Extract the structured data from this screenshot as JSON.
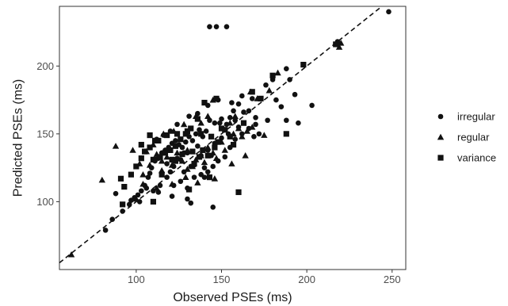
{
  "chart_data": {
    "type": "scatter",
    "title": "",
    "xlabel": "Observed PSEs (ms)",
    "ylabel": "Predicted PSEs (ms)",
    "xlim": [
      55,
      258
    ],
    "ylim": [
      50,
      244
    ],
    "x_ticks": [
      100,
      150,
      200,
      250
    ],
    "y_ticks": [
      100,
      150,
      200
    ],
    "grid": false,
    "legend_position": "right",
    "reference_line": {
      "style": "dashed",
      "slope": 1,
      "intercept": 0
    },
    "series": [
      {
        "name": "irregular",
        "marker": "circle",
        "points": [
          [
            248,
            240
          ],
          [
            218,
            218
          ],
          [
            188,
            198
          ],
          [
            180,
            190
          ],
          [
            176,
            186
          ],
          [
            190,
            190
          ],
          [
            193,
            179
          ],
          [
            203,
            171
          ],
          [
            195,
            158
          ],
          [
            188,
            160
          ],
          [
            185,
            170
          ],
          [
            182,
            175
          ],
          [
            166,
            167
          ],
          [
            170,
            162
          ],
          [
            163,
            166
          ],
          [
            160,
            172
          ],
          [
            157,
            167
          ],
          [
            160,
            155
          ],
          [
            158,
            160
          ],
          [
            155,
            162
          ],
          [
            153,
            157
          ],
          [
            150,
            161
          ],
          [
            149,
            158
          ],
          [
            146,
            158
          ],
          [
            143,
            160
          ],
          [
            141,
            152
          ],
          [
            139,
            148
          ],
          [
            137,
            153
          ],
          [
            135,
            150
          ],
          [
            133,
            145
          ],
          [
            131,
            148
          ],
          [
            129,
            144
          ],
          [
            127,
            140
          ],
          [
            125,
            142
          ],
          [
            123,
            145
          ],
          [
            121,
            143
          ],
          [
            119,
            140
          ],
          [
            117,
            138
          ],
          [
            115,
            136
          ],
          [
            113,
            132
          ],
          [
            111,
            130
          ],
          [
            109,
            125
          ],
          [
            107,
            118
          ],
          [
            105,
            112
          ],
          [
            103,
            108
          ],
          [
            101,
            105
          ],
          [
            99,
            103
          ],
          [
            97,
            101
          ],
          [
            88,
            106
          ],
          [
            82,
            79
          ],
          [
            86,
            87
          ],
          [
            92,
            93
          ],
          [
            96,
            98
          ],
          [
            102,
            100
          ],
          [
            106,
            110
          ],
          [
            110,
            108
          ],
          [
            114,
            112
          ],
          [
            118,
            118
          ],
          [
            122,
            112
          ],
          [
            126,
            115
          ],
          [
            130,
            110
          ],
          [
            134,
            118
          ],
          [
            138,
            120
          ],
          [
            142,
            122
          ],
          [
            145,
            126
          ],
          [
            148,
            130
          ],
          [
            152,
            133
          ],
          [
            155,
            140
          ],
          [
            158,
            146
          ],
          [
            162,
            150
          ],
          [
            166,
            154
          ],
          [
            169,
            148
          ],
          [
            172,
            150
          ],
          [
            168,
            176
          ],
          [
            162,
            178
          ],
          [
            156,
            173
          ],
          [
            148,
            175
          ],
          [
            142,
            171
          ],
          [
            136,
            165
          ],
          [
            131,
            163
          ],
          [
            124,
            157
          ],
          [
            120,
            152
          ],
          [
            116,
            149
          ],
          [
            112,
            146
          ],
          [
            118,
            128
          ],
          [
            122,
            126
          ],
          [
            126,
            131
          ],
          [
            130,
            136
          ],
          [
            134,
            127
          ],
          [
            138,
            134
          ],
          [
            142,
            138
          ],
          [
            146,
            143
          ],
          [
            150,
            147
          ],
          [
            154,
            150
          ],
          [
            128,
            122
          ],
          [
            132,
            126
          ],
          [
            136,
            141
          ],
          [
            140,
            125
          ],
          [
            144,
            134
          ],
          [
            120,
            122
          ],
          [
            124,
            132
          ],
          [
            128,
            136
          ],
          [
            143,
            229
          ],
          [
            147,
            229
          ],
          [
            153,
            229
          ],
          [
            132,
            99
          ],
          [
            145,
            96
          ],
          [
            121,
            104
          ],
          [
            130,
            102
          ],
          [
            113,
            107
          ],
          [
            108,
            121
          ],
          [
            140,
            118
          ],
          [
            170,
            157
          ],
          [
            177,
            160
          ]
        ]
      },
      {
        "name": "regular",
        "marker": "triangle",
        "points": [
          [
            220,
            217
          ],
          [
            219,
            214
          ],
          [
            62,
            61
          ],
          [
            80,
            116
          ],
          [
            88,
            141
          ],
          [
            98,
            138
          ],
          [
            104,
            120
          ],
          [
            108,
            127
          ],
          [
            112,
            135
          ],
          [
            115,
            130
          ],
          [
            118,
            133
          ],
          [
            121,
            127
          ],
          [
            124,
            136
          ],
          [
            127,
            130
          ],
          [
            130,
            138
          ],
          [
            133,
            126
          ],
          [
            135,
            131
          ],
          [
            138,
            134
          ],
          [
            140,
            129
          ],
          [
            142,
            140
          ],
          [
            145,
            136
          ],
          [
            147,
            132
          ],
          [
            150,
            144
          ],
          [
            152,
            138
          ],
          [
            155,
            158
          ],
          [
            157,
            150
          ],
          [
            160,
            154
          ],
          [
            162,
            148
          ],
          [
            165,
            152
          ],
          [
            168,
            155
          ],
          [
            142,
            163
          ],
          [
            138,
            158
          ],
          [
            135,
            163
          ],
          [
            128,
            157
          ],
          [
            122,
            152
          ],
          [
            116,
            150
          ],
          [
            110,
            142
          ],
          [
            106,
            137
          ],
          [
            102,
            128
          ],
          [
            104,
            113
          ],
          [
            100,
            102
          ],
          [
            129,
            118
          ],
          [
            136,
            114
          ],
          [
            146,
            117
          ],
          [
            156,
            128
          ],
          [
            164,
            134
          ],
          [
            175,
            149
          ],
          [
            167,
            181
          ],
          [
            171,
            176
          ],
          [
            178,
            182
          ],
          [
            183,
            195
          ],
          [
            145,
            175
          ],
          [
            158,
            163
          ],
          [
            130,
            124
          ],
          [
            121,
            113
          ],
          [
            112,
            110
          ],
          [
            115,
            123
          ]
        ]
      },
      {
        "name": "variance",
        "marker": "square",
        "points": [
          [
            217,
            216
          ],
          [
            198,
            201
          ],
          [
            180,
            193
          ],
          [
            188,
            150
          ],
          [
            173,
            176
          ],
          [
            168,
            181
          ],
          [
            157,
            142
          ],
          [
            150,
            154
          ],
          [
            147,
            176
          ],
          [
            140,
            173
          ],
          [
            136,
            161
          ],
          [
            132,
            154
          ],
          [
            129,
            150
          ],
          [
            126,
            146
          ],
          [
            123,
            141
          ],
          [
            120,
            138
          ],
          [
            117,
            136
          ],
          [
            114,
            133
          ],
          [
            111,
            145
          ],
          [
            108,
            140
          ],
          [
            105,
            137
          ],
          [
            103,
            132
          ],
          [
            100,
            126
          ],
          [
            97,
            120
          ],
          [
            93,
            111
          ],
          [
            91,
            117
          ],
          [
            103,
            142
          ],
          [
            108,
            149
          ],
          [
            113,
            145
          ],
          [
            118,
            149
          ],
          [
            124,
            150
          ],
          [
            130,
            152
          ],
          [
            138,
            150
          ],
          [
            144,
            148
          ],
          [
            148,
            144
          ],
          [
            152,
            153
          ],
          [
            160,
            107
          ],
          [
            143,
            118
          ],
          [
            131,
            109
          ],
          [
            123,
            130
          ],
          [
            127,
            135
          ],
          [
            134,
            128
          ],
          [
            139,
            138
          ],
          [
            142,
            134
          ],
          [
            110,
            100
          ],
          [
            92,
            98
          ],
          [
            110,
            131
          ],
          [
            115,
            120
          ],
          [
            121,
            131
          ],
          [
            133,
            137
          ],
          [
            137,
            133
          ],
          [
            146,
            140
          ],
          [
            155,
            148
          ],
          [
            163,
            158
          ]
        ]
      }
    ]
  }
}
